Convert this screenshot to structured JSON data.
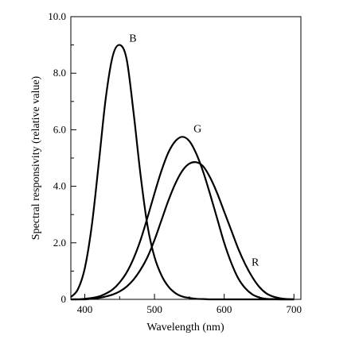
{
  "chart_data": {
    "type": "line",
    "title": "",
    "xlabel": "Wavelength (nm)",
    "ylabel": "Spectral responsivity (relative value)",
    "xlim": [
      380,
      710
    ],
    "ylim": [
      0,
      10
    ],
    "x_ticks": [
      400,
      500,
      600,
      700
    ],
    "x_tick_labels": [
      "400",
      "500",
      "600",
      "700"
    ],
    "y_ticks": [
      0,
      2,
      4,
      6,
      8,
      10
    ],
    "y_tick_labels": [
      "0",
      "2.0",
      "4.0",
      "6.0",
      "8.0",
      "10.0"
    ],
    "grid": false,
    "legend": "none",
    "x": [
      380,
      390,
      400,
      410,
      420,
      430,
      440,
      450,
      460,
      470,
      480,
      490,
      500,
      510,
      520,
      530,
      540,
      550,
      560,
      570,
      580,
      590,
      600,
      610,
      620,
      630,
      640,
      650,
      660,
      670,
      680,
      690,
      700
    ],
    "series": [
      {
        "name": "B",
        "color": "#000000",
        "values": [
          0.08,
          0.35,
          1.1,
          2.6,
          4.8,
          7.1,
          8.6,
          9.0,
          8.5,
          6.6,
          4.4,
          2.6,
          1.5,
          0.85,
          0.45,
          0.22,
          0.1,
          0.05,
          0.02,
          0.01,
          0,
          0,
          0,
          0,
          0,
          0,
          0,
          0,
          0,
          0,
          0,
          0,
          0
        ]
      },
      {
        "name": "G",
        "color": "#000000",
        "values": [
          0,
          0,
          0.02,
          0.05,
          0.1,
          0.2,
          0.35,
          0.6,
          0.95,
          1.45,
          2.1,
          2.9,
          3.75,
          4.55,
          5.2,
          5.6,
          5.75,
          5.6,
          5.15,
          4.5,
          3.7,
          2.85,
          2.0,
          1.3,
          0.75,
          0.4,
          0.18,
          0.07,
          0.02,
          0.01,
          0,
          0,
          0
        ]
      },
      {
        "name": "R",
        "color": "#000000",
        "values": [
          0,
          0,
          0,
          0.02,
          0.05,
          0.1,
          0.17,
          0.28,
          0.45,
          0.7,
          1.05,
          1.5,
          2.1,
          2.8,
          3.5,
          4.1,
          4.55,
          4.8,
          4.85,
          4.7,
          4.3,
          3.75,
          3.1,
          2.45,
          1.8,
          1.25,
          0.8,
          0.45,
          0.22,
          0.1,
          0.04,
          0.01,
          0
        ]
      }
    ]
  }
}
